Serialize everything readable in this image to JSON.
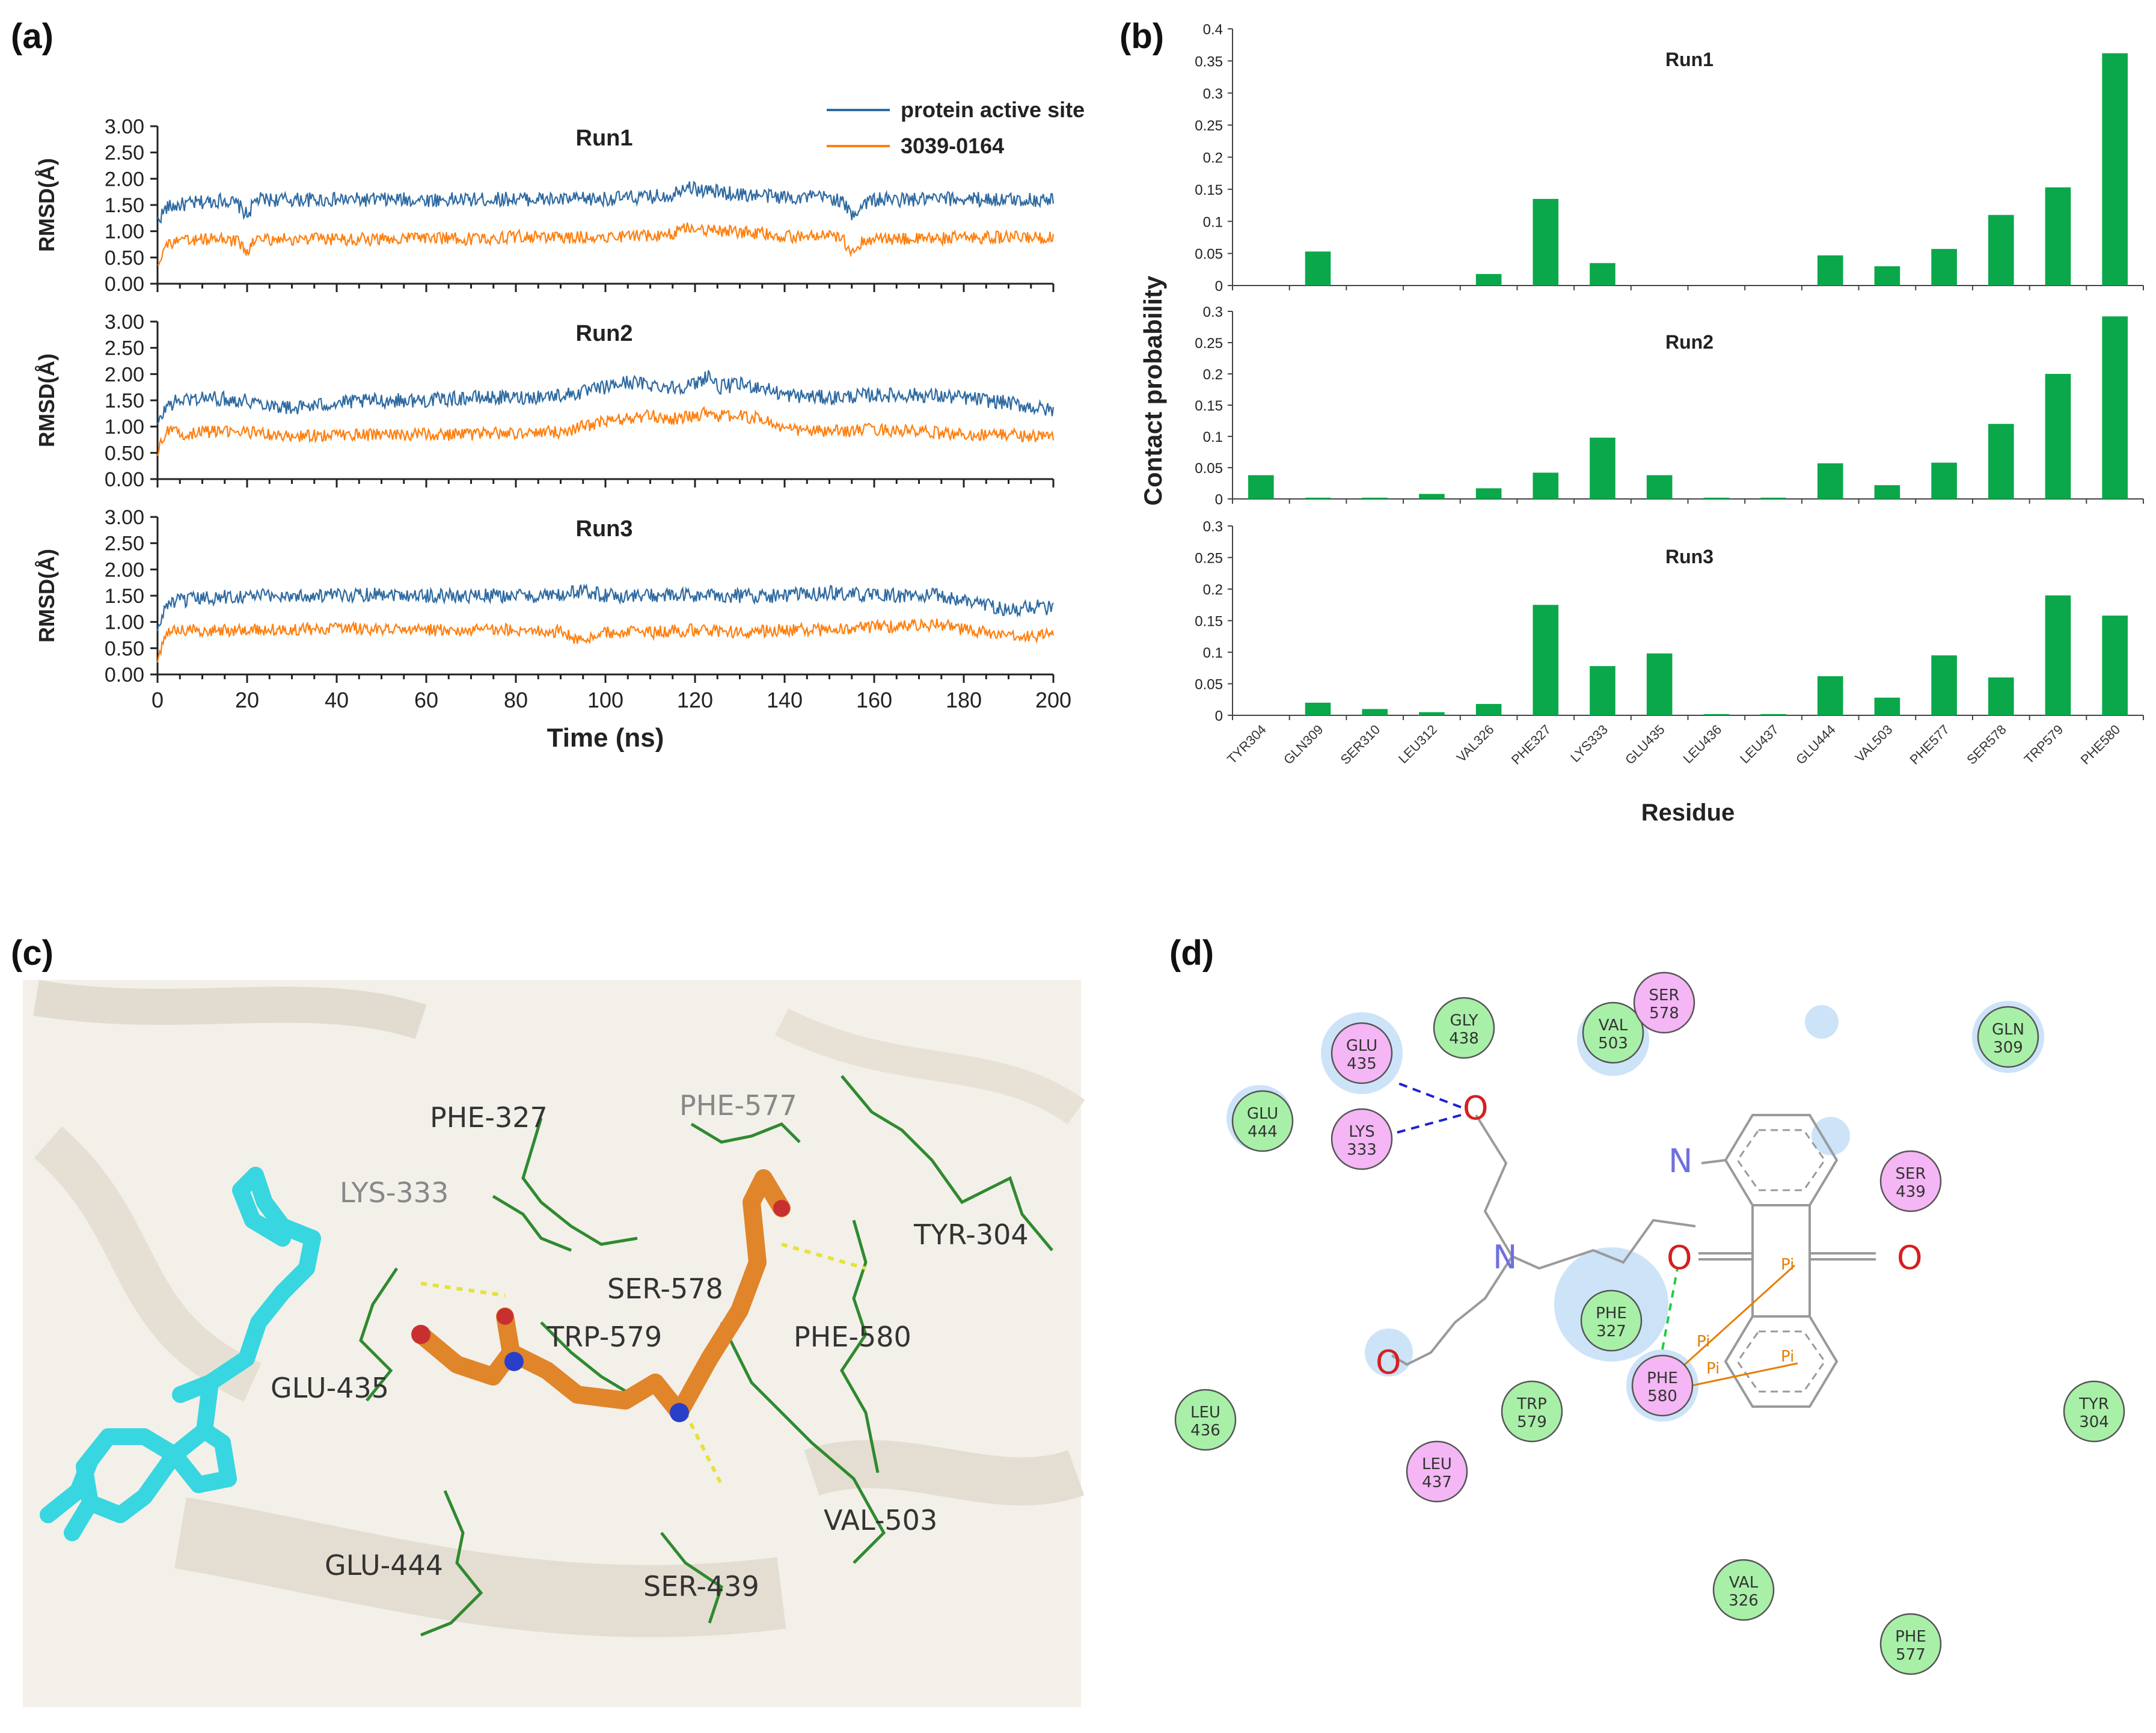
{
  "panels": {
    "a": {
      "letter": "(a)"
    },
    "b": {
      "letter": "(b)"
    },
    "c": {
      "letter": "(c)"
    },
    "d": {
      "letter": "(d)"
    }
  },
  "chart_data": [
    {
      "type": "line",
      "panel": "(a)",
      "xlabel": "Time (ns)",
      "ylabel": "RMSD(Å)",
      "xlim": [
        0,
        200
      ],
      "ylim": [
        0.0,
        3.0
      ],
      "x_ticks": [
        "0",
        "20",
        "40",
        "60",
        "80",
        "100",
        "120",
        "140",
        "160",
        "180",
        "200"
      ],
      "y_ticks": [
        "0.00",
        "0.50",
        "1.00",
        "1.50",
        "2.00",
        "2.50",
        "3.00"
      ],
      "legend": {
        "placement": "top-right",
        "entries": [
          "protein active site",
          "3039-0164"
        ]
      },
      "colors": {
        "protein": "#2e6aa1",
        "ligand": "#ff7f0e"
      },
      "subplots": [
        {
          "title": "Run1",
          "series": [
            {
              "name": "protein active site",
              "x": [
                0,
                2,
                5,
                10,
                15,
                18,
                20,
                22,
                25,
                30,
                40,
                50,
                60,
                70,
                80,
                90,
                100,
                110,
                115,
                118,
                120,
                125,
                130,
                135,
                140,
                150,
                153,
                155,
                158,
                160,
                170,
                180,
                190,
                200
              ],
              "y": [
                1.2,
                1.45,
                1.5,
                1.55,
                1.6,
                1.5,
                1.3,
                1.6,
                1.6,
                1.6,
                1.6,
                1.6,
                1.6,
                1.6,
                1.62,
                1.6,
                1.62,
                1.65,
                1.7,
                1.9,
                1.8,
                1.75,
                1.7,
                1.68,
                1.65,
                1.65,
                1.55,
                1.3,
                1.55,
                1.6,
                1.6,
                1.62,
                1.6,
                1.6
              ]
            },
            {
              "name": "3039-0164",
              "x": [
                0,
                2,
                5,
                10,
                15,
                18,
                20,
                22,
                25,
                30,
                40,
                50,
                60,
                70,
                80,
                90,
                100,
                110,
                115,
                118,
                120,
                125,
                130,
                135,
                140,
                150,
                153,
                155,
                158,
                160,
                170,
                180,
                190,
                200
              ],
              "y": [
                0.4,
                0.75,
                0.8,
                0.85,
                0.85,
                0.8,
                0.6,
                0.85,
                0.85,
                0.85,
                0.85,
                0.85,
                0.88,
                0.85,
                0.9,
                0.88,
                0.9,
                0.92,
                0.95,
                1.1,
                1.05,
                1.0,
                0.98,
                0.95,
                0.9,
                0.9,
                0.85,
                0.6,
                0.85,
                0.85,
                0.85,
                0.88,
                0.88,
                0.88
              ]
            }
          ]
        },
        {
          "title": "Run2",
          "series": [
            {
              "name": "protein active site",
              "x": [
                0,
                2,
                5,
                10,
                20,
                30,
                40,
                50,
                60,
                70,
                80,
                90,
                95,
                100,
                105,
                110,
                115,
                120,
                123,
                125,
                130,
                135,
                140,
                150,
                160,
                170,
                180,
                190,
                200
              ],
              "y": [
                1.0,
                1.4,
                1.5,
                1.55,
                1.5,
                1.35,
                1.45,
                1.5,
                1.5,
                1.55,
                1.55,
                1.6,
                1.65,
                1.75,
                1.85,
                1.8,
                1.75,
                1.8,
                2.0,
                1.75,
                1.8,
                1.75,
                1.6,
                1.55,
                1.6,
                1.6,
                1.55,
                1.45,
                1.3
              ]
            },
            {
              "name": "3039-0164",
              "x": [
                0,
                2,
                5,
                10,
                20,
                30,
                40,
                50,
                60,
                70,
                80,
                90,
                95,
                100,
                105,
                110,
                115,
                120,
                123,
                125,
                130,
                135,
                140,
                150,
                160,
                170,
                180,
                190,
                200
              ],
              "y": [
                0.5,
                0.95,
                0.85,
                0.9,
                0.9,
                0.8,
                0.85,
                0.85,
                0.85,
                0.85,
                0.88,
                0.9,
                1.0,
                1.1,
                1.15,
                1.2,
                1.15,
                1.2,
                1.3,
                1.2,
                1.2,
                1.15,
                0.95,
                0.9,
                0.95,
                0.9,
                0.85,
                0.85,
                0.8
              ]
            }
          ]
        },
        {
          "title": "Run3",
          "series": [
            {
              "name": "protein active site",
              "x": [
                0,
                2,
                5,
                10,
                20,
                30,
                40,
                50,
                60,
                70,
                80,
                90,
                95,
                100,
                110,
                120,
                130,
                140,
                150,
                160,
                170,
                175,
                180,
                185,
                190,
                195,
                200
              ],
              "y": [
                0.8,
                1.35,
                1.4,
                1.45,
                1.5,
                1.5,
                1.5,
                1.55,
                1.5,
                1.5,
                1.5,
                1.5,
                1.6,
                1.5,
                1.5,
                1.5,
                1.5,
                1.5,
                1.55,
                1.5,
                1.5,
                1.5,
                1.4,
                1.35,
                1.2,
                1.3,
                1.25
              ]
            },
            {
              "name": "3039-0164",
              "x": [
                0,
                2,
                5,
                10,
                20,
                30,
                40,
                50,
                60,
                70,
                80,
                90,
                95,
                100,
                110,
                120,
                130,
                140,
                150,
                160,
                170,
                175,
                180,
                185,
                190,
                195,
                200
              ],
              "y": [
                0.3,
                0.8,
                0.85,
                0.85,
                0.85,
                0.85,
                0.88,
                0.85,
                0.85,
                0.85,
                0.85,
                0.82,
                0.6,
                0.8,
                0.8,
                0.85,
                0.8,
                0.85,
                0.85,
                0.9,
                0.95,
                0.95,
                0.85,
                0.8,
                0.7,
                0.75,
                0.75
              ]
            }
          ]
        }
      ]
    },
    {
      "type": "bar",
      "panel": "(b)",
      "xlabel": "Residue",
      "ylabel": "Contact probability",
      "color": "#0aa84a",
      "categories": [
        "TYR304",
        "GLN309",
        "SER310",
        "LEU312",
        "VAL326",
        "PHE327",
        "LYS333",
        "GLU435",
        "LEU436",
        "LEU437",
        "GLU444",
        "VAL503",
        "PHE577",
        "SER578",
        "TRP579",
        "PHE580"
      ],
      "subplots": [
        {
          "title": "Run1",
          "ylim": [
            0,
            0.4
          ],
          "y_ticks": [
            "0",
            "0.05",
            "0.1",
            "0.15",
            "0.2",
            "0.25",
            "0.3",
            "0.35",
            "0.4"
          ],
          "values": [
            0,
            0.053,
            0,
            0,
            0.018,
            0.135,
            0.035,
            0,
            0,
            0,
            0.047,
            0.03,
            0.057,
            0.11,
            0.153,
            0.362
          ]
        },
        {
          "title": "Run2",
          "ylim": [
            0,
            0.3
          ],
          "y_ticks": [
            "0",
            "0.05",
            "0.1",
            "0.15",
            "0.2",
            "0.25",
            "0.3"
          ],
          "values": [
            0.038,
            0.002,
            0.002,
            0.008,
            0.017,
            0.042,
            0.098,
            0.038,
            0.002,
            0.002,
            0.057,
            0.022,
            0.058,
            0.12,
            0.2,
            0.292
          ]
        },
        {
          "title": "Run3",
          "ylim": [
            0,
            0.3
          ],
          "y_ticks": [
            "0",
            "0.05",
            "0.1",
            "0.15",
            "0.2",
            "0.25",
            "0.3"
          ],
          "values": [
            0,
            0.02,
            0.01,
            0.005,
            0.018,
            0.175,
            0.078,
            0.098,
            0.002,
            0.002,
            0.062,
            0.028,
            0.095,
            0.06,
            0.19,
            0.158
          ]
        }
      ]
    }
  ],
  "panel_c": {
    "labels": [
      "PHE-327",
      "PHE-577",
      "LYS-333",
      "TYR-304",
      "SER-578",
      "TRP-579",
      "PHE-580",
      "GLU-435",
      "VAL-503",
      "GLU-444",
      "SER-439"
    ],
    "colors": {
      "ligand": "#e0852a",
      "cyan_ligand": "#38d6e0",
      "residues": "#2f8a2f",
      "background": "#f2efe9"
    }
  },
  "panel_d": {
    "residues": [
      {
        "name": "GLU",
        "num": "435",
        "kind": "pink"
      },
      {
        "name": "GLY",
        "num": "438",
        "kind": "green"
      },
      {
        "name": "VAL",
        "num": "503",
        "kind": "green"
      },
      {
        "name": "SER",
        "num": "578",
        "kind": "pink"
      },
      {
        "name": "GLN",
        "num": "309",
        "kind": "green"
      },
      {
        "name": "GLU",
        "num": "444",
        "kind": "green"
      },
      {
        "name": "LYS",
        "num": "333",
        "kind": "pink"
      },
      {
        "name": "SER",
        "num": "439",
        "kind": "pink"
      },
      {
        "name": "PHE",
        "num": "327",
        "kind": "green"
      },
      {
        "name": "PHE",
        "num": "580",
        "kind": "pink"
      },
      {
        "name": "LEU",
        "num": "436",
        "kind": "green"
      },
      {
        "name": "TRP",
        "num": "579",
        "kind": "green"
      },
      {
        "name": "LEU",
        "num": "437",
        "kind": "pink"
      },
      {
        "name": "TYR",
        "num": "304",
        "kind": "green"
      },
      {
        "name": "VAL",
        "num": "326",
        "kind": "green"
      },
      {
        "name": "PHE",
        "num": "577",
        "kind": "green"
      }
    ],
    "atoms": {
      "oxygen": "O",
      "nitrogen": "N"
    },
    "pi_label": "Pi",
    "colors": {
      "green": "#a8f0a8",
      "pink": "#f4b6f4",
      "halo": "#bcd9f5",
      "oxygen": "#d42020",
      "nitrogen": "#7070e0",
      "hbond": "#2020d0",
      "pi": "#e67e00"
    }
  }
}
